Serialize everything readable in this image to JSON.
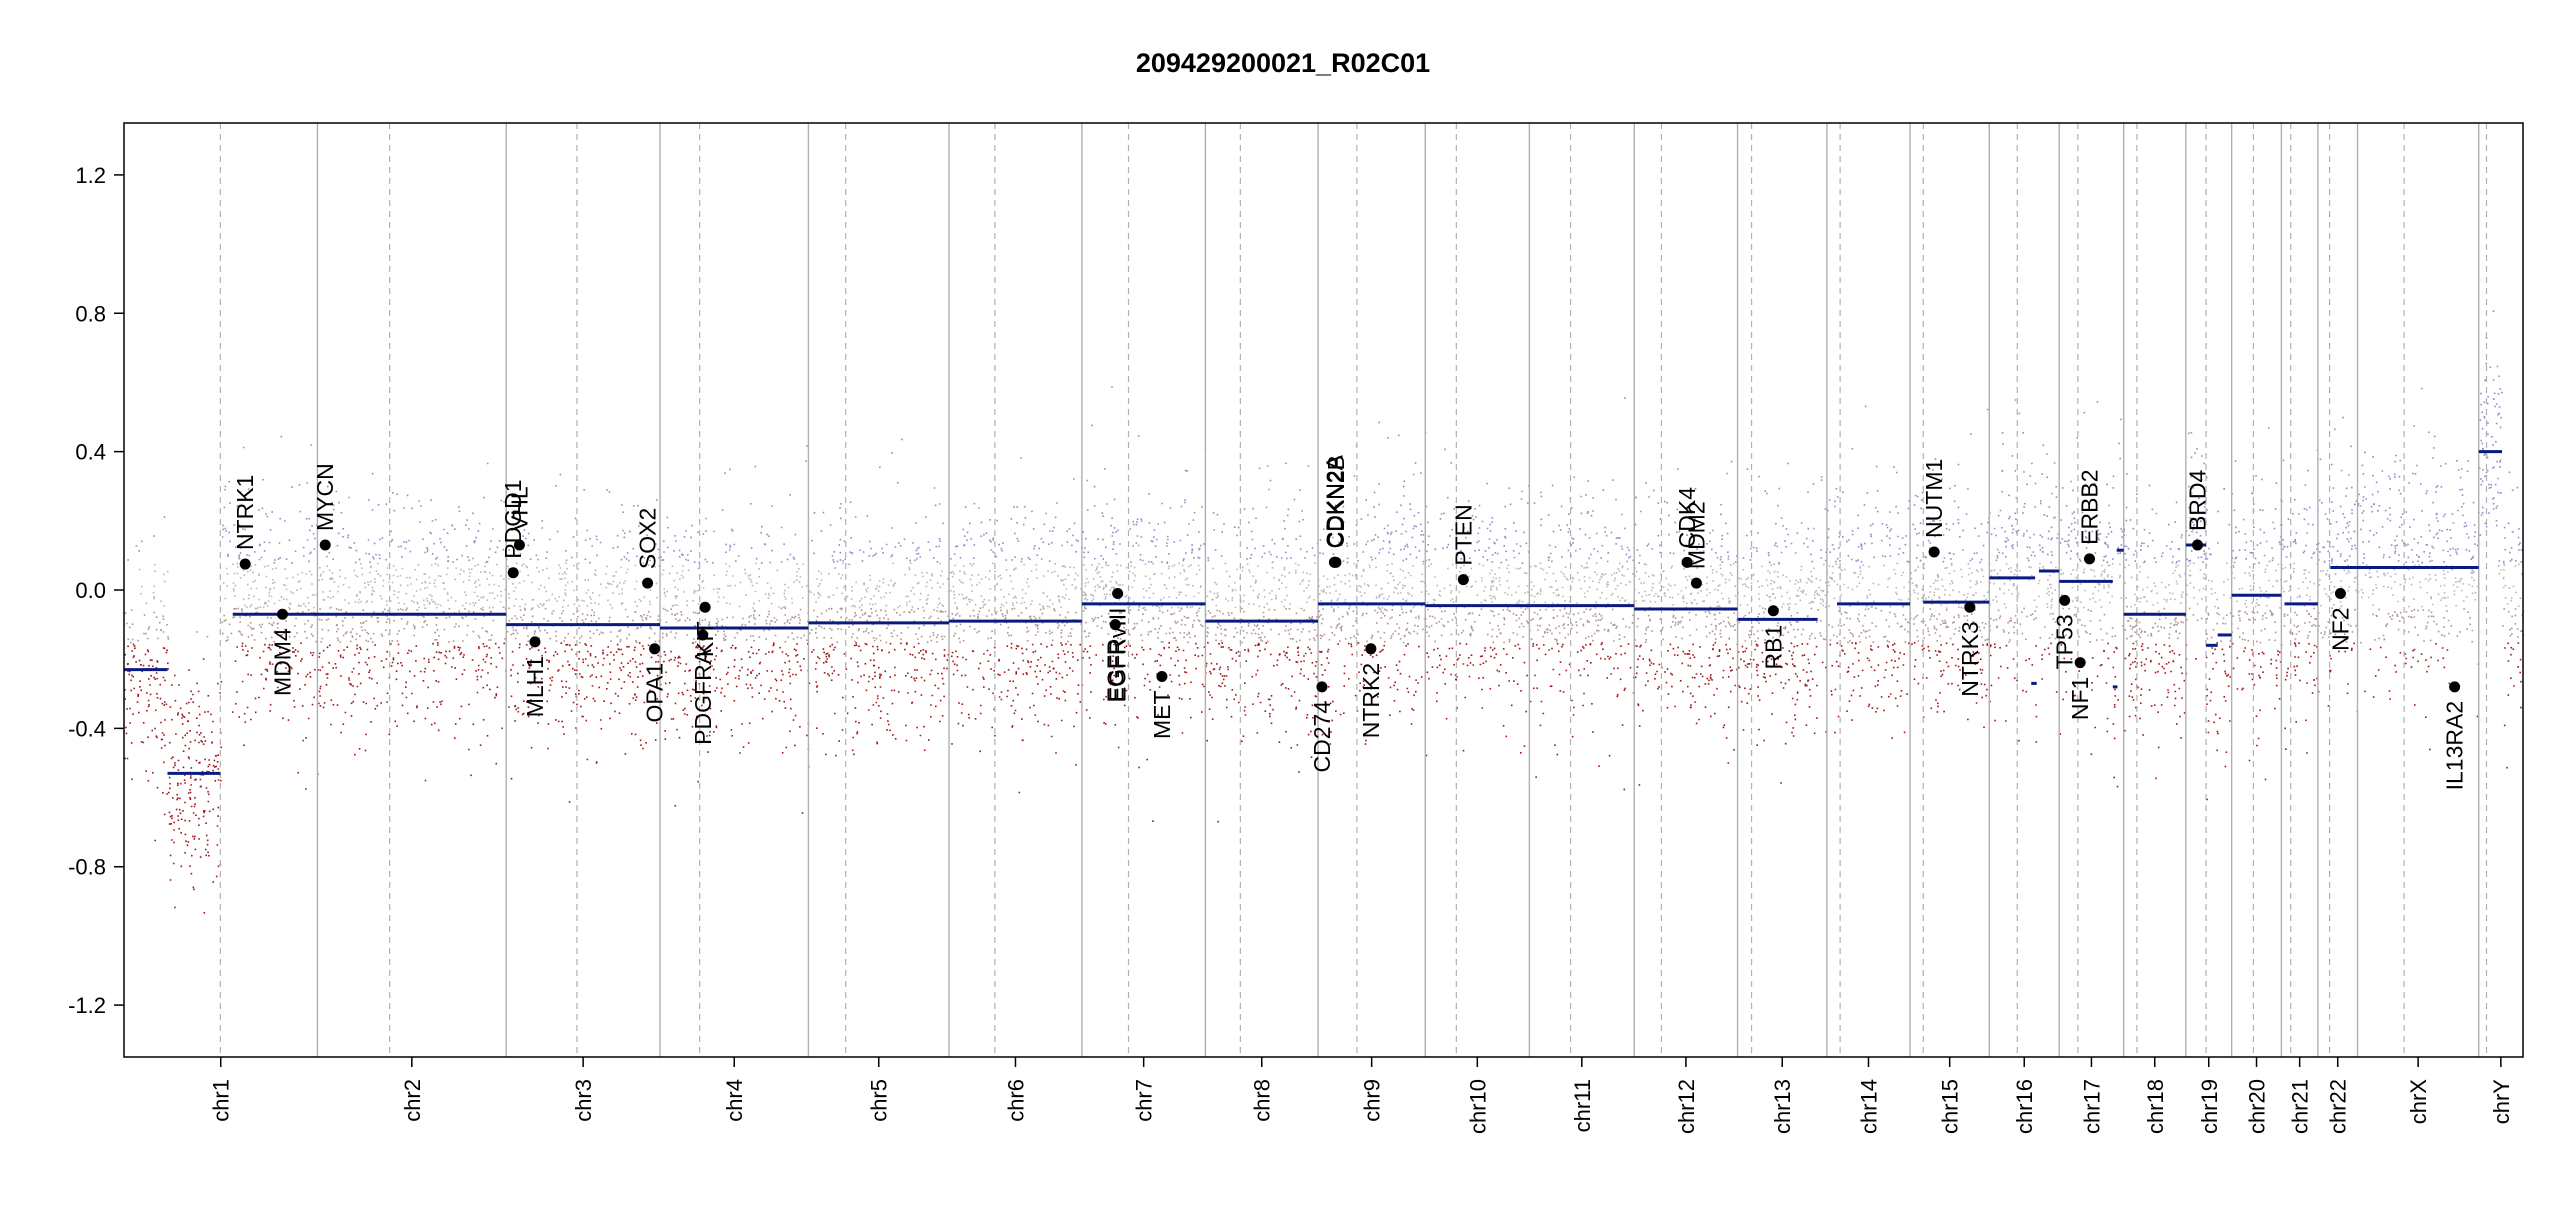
{
  "chart_data": {
    "type": "scatter",
    "title": "209429200021_R02C01",
    "xlabel": "",
    "ylabel": "",
    "ylim": [
      -1.35,
      1.35
    ],
    "y_ticks": [
      -1.2,
      -0.8,
      -0.4,
      0.0,
      0.4,
      0.8,
      1.2
    ],
    "y_tick_labels": [
      "-1.2",
      "-0.8",
      "-0.4",
      "0.0",
      "0.4",
      "0.8",
      "1.2"
    ],
    "grid": false,
    "legend": "none",
    "colors": {
      "gain": "#8e8ec8",
      "neutral": "#b8b8b8",
      "loss": "#a01818",
      "segment": "#0b1a80",
      "boundary": "#b0b0b0",
      "gene_marker": "#000000"
    },
    "chromosomes": [
      {
        "name": "chr1",
        "start": 0,
        "end": 249,
        "centromere": 124
      },
      {
        "name": "chr2",
        "start": 249,
        "end": 492,
        "centromere": 342
      },
      {
        "name": "chr3",
        "start": 492,
        "end": 690,
        "centromere": 583
      },
      {
        "name": "chr4",
        "start": 690,
        "end": 881,
        "centromere": 741
      },
      {
        "name": "chr5",
        "start": 881,
        "end": 1062,
        "centromere": 929
      },
      {
        "name": "chr6",
        "start": 1062,
        "end": 1233,
        "centromere": 1121
      },
      {
        "name": "chr7",
        "start": 1233,
        "end": 1392,
        "centromere": 1293
      },
      {
        "name": "chr8",
        "start": 1392,
        "end": 1537,
        "centromere": 1437
      },
      {
        "name": "chr9",
        "start": 1537,
        "end": 1675,
        "centromere": 1587
      },
      {
        "name": "chr10",
        "start": 1675,
        "end": 1809,
        "centromere": 1715
      },
      {
        "name": "chr11",
        "start": 1809,
        "end": 1944,
        "centromere": 1862
      },
      {
        "name": "chr12",
        "start": 1944,
        "end": 2077,
        "centromere": 1979
      },
      {
        "name": "chr13",
        "start": 2077,
        "end": 2192,
        "centromere": 2095
      },
      {
        "name": "chr14",
        "start": 2192,
        "end": 2299,
        "centromere": 2209
      },
      {
        "name": "chr15",
        "start": 2299,
        "end": 2401,
        "centromere": 2316
      },
      {
        "name": "chr16",
        "start": 2401,
        "end": 2491,
        "centromere": 2437
      },
      {
        "name": "chr17",
        "start": 2491,
        "end": 2574,
        "centromere": 2515
      },
      {
        "name": "chr18",
        "start": 2574,
        "end": 2654,
        "centromere": 2591
      },
      {
        "name": "chr19",
        "start": 2654,
        "end": 2713,
        "centromere": 2680
      },
      {
        "name": "chr20",
        "start": 2713,
        "end": 2777,
        "centromere": 2741
      },
      {
        "name": "chr21",
        "start": 2777,
        "end": 2824,
        "centromere": 2789
      },
      {
        "name": "chr22",
        "start": 2824,
        "end": 2875,
        "centromere": 2839
      },
      {
        "name": "chrX",
        "start": 2875,
        "end": 3031,
        "centromere": 2935
      },
      {
        "name": "chrY",
        "start": 3031,
        "end": 3088,
        "centromere": 3041
      }
    ],
    "segments": [
      {
        "x": [
          0,
          56
        ],
        "y": -0.23
      },
      {
        "x": [
          56,
          124
        ],
        "y": -0.53
      },
      {
        "x": [
          140,
          249
        ],
        "y": -0.07
      },
      {
        "x": [
          249,
          492
        ],
        "y": -0.07
      },
      {
        "x": [
          492,
          690
        ],
        "y": -0.1
      },
      {
        "x": [
          690,
          750
        ],
        "y": -0.11
      },
      {
        "x": [
          750,
          881
        ],
        "y": -0.11
      },
      {
        "x": [
          881,
          1062
        ],
        "y": -0.095
      },
      {
        "x": [
          1062,
          1233
        ],
        "y": -0.09
      },
      {
        "x": [
          1233,
          1392
        ],
        "y": -0.04
      },
      {
        "x": [
          1392,
          1537
        ],
        "y": -0.09
      },
      {
        "x": [
          1537,
          1675
        ],
        "y": -0.04
      },
      {
        "x": [
          1675,
          1809
        ],
        "y": -0.045
      },
      {
        "x": [
          1809,
          1944
        ],
        "y": -0.045
      },
      {
        "x": [
          1944,
          2077
        ],
        "y": -0.055
      },
      {
        "x": [
          2077,
          2180
        ],
        "y": -0.085
      },
      {
        "x": [
          2205,
          2299
        ],
        "y": -0.04
      },
      {
        "x": [
          2316,
          2401
        ],
        "y": -0.035
      },
      {
        "x": [
          2401,
          2460
        ],
        "y": 0.035
      },
      {
        "x": [
          2455,
          2462
        ],
        "y": -0.27
      },
      {
        "x": [
          2465,
          2491
        ],
        "y": 0.055
      },
      {
        "x": [
          2491,
          2560
        ],
        "y": 0.025
      },
      {
        "x": [
          2560,
          2566
        ],
        "y": -0.28
      },
      {
        "x": [
          2565,
          2574
        ],
        "y": 0.115
      },
      {
        "x": [
          2574,
          2654
        ],
        "y": -0.07
      },
      {
        "x": [
          2654,
          2680
        ],
        "y": 0.13
      },
      {
        "x": [
          2680,
          2695
        ],
        "y": -0.16
      },
      {
        "x": [
          2695,
          2713
        ],
        "y": -0.13
      },
      {
        "x": [
          2713,
          2777
        ],
        "y": -0.015
      },
      {
        "x": [
          2781,
          2824
        ],
        "y": -0.04
      },
      {
        "x": [
          2840,
          2875
        ],
        "y": 0.065
      },
      {
        "x": [
          2875,
          3031
        ],
        "y": 0.065
      },
      {
        "x": [
          3031,
          3061
        ],
        "y": 0.4
      }
    ],
    "genes": [
      {
        "name": "NTRK1",
        "x": 156,
        "y": 0.075,
        "label_side": "above"
      },
      {
        "name": "MDM4",
        "x": 204,
        "y": -0.07,
        "label_side": "below"
      },
      {
        "name": "MYCN",
        "x": 259,
        "y": 0.13,
        "label_side": "above"
      },
      {
        "name": "PDGD1",
        "x": 501,
        "y": 0.05,
        "label_side": "above"
      },
      {
        "name": "VHL",
        "x": 509,
        "y": 0.13,
        "label_side": "above"
      },
      {
        "name": "MLH1",
        "x": 529,
        "y": -0.15,
        "label_side": "below"
      },
      {
        "name": "SOX2",
        "x": 674,
        "y": 0.02,
        "label_side": "above"
      },
      {
        "name": "OPA1",
        "x": 683,
        "y": -0.17,
        "label_side": "below"
      },
      {
        "name": "PDGFRA",
        "x": 745,
        "y": -0.13,
        "label_side": "below"
      },
      {
        "name": "KIT",
        "x": 748,
        "y": -0.05,
        "label_side": "below"
      },
      {
        "name": "EGFR",
        "x": 1276,
        "y": -0.1,
        "label_side": "below"
      },
      {
        "name": "EGFRvIII",
        "x": 1279,
        "y": -0.01,
        "label_side": "below"
      },
      {
        "name": "MET",
        "x": 1336,
        "y": -0.25,
        "label_side": "below"
      },
      {
        "name": "CD274",
        "x": 1542,
        "y": -0.28,
        "label_side": "below"
      },
      {
        "name": "CDKN2A",
        "x": 1558,
        "y": 0.08,
        "label_side": "above"
      },
      {
        "name": "CDKN2B",
        "x": 1560,
        "y": 0.08,
        "label_side": "above"
      },
      {
        "name": "NTRK2",
        "x": 1605,
        "y": -0.17,
        "label_side": "below"
      },
      {
        "name": "PTEN",
        "x": 1724,
        "y": 0.03,
        "label_side": "above"
      },
      {
        "name": "CDK4",
        "x": 2012,
        "y": 0.08,
        "label_side": "above"
      },
      {
        "name": "MDM2",
        "x": 2024,
        "y": 0.02,
        "label_side": "above"
      },
      {
        "name": "RB1",
        "x": 2123,
        "y": -0.06,
        "label_side": "below"
      },
      {
        "name": "NUTM1",
        "x": 2330,
        "y": 0.11,
        "label_side": "above"
      },
      {
        "name": "NTRK3",
        "x": 2376,
        "y": -0.05,
        "label_side": "below"
      },
      {
        "name": "TP53",
        "x": 2498,
        "y": -0.03,
        "label_side": "below"
      },
      {
        "name": "NF1",
        "x": 2518,
        "y": -0.21,
        "label_side": "below"
      },
      {
        "name": "ERBB2",
        "x": 2530,
        "y": 0.09,
        "label_side": "above"
      },
      {
        "name": "BRD4",
        "x": 2669,
        "y": 0.13,
        "label_side": "above"
      },
      {
        "name": "NF2",
        "x": 2853,
        "y": -0.01,
        "label_side": "below"
      },
      {
        "name": "IL13RA2",
        "x": 3000,
        "y": -0.28,
        "label_side": "below"
      }
    ]
  }
}
